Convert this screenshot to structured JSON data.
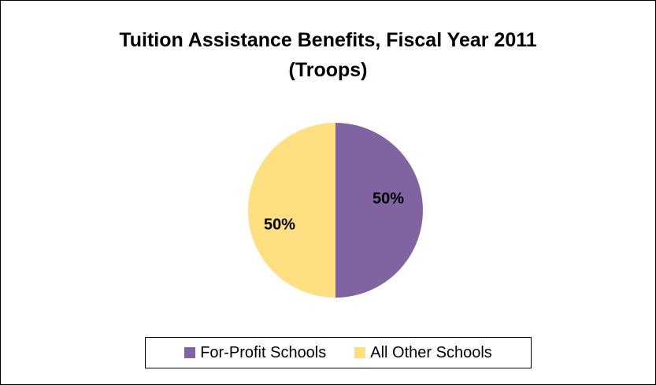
{
  "chart_data": {
    "type": "pie",
    "title_lines": [
      "Tuition Assistance Benefits, Fiscal Year 2011",
      "(Troops)"
    ],
    "categories": [
      "For-Profit Schools",
      "All Other Schools"
    ],
    "values": [
      50,
      50
    ],
    "data_labels": [
      "50%",
      "50%"
    ],
    "colors": [
      "#8064A2",
      "#FFDF80"
    ],
    "legend_position": "bottom"
  }
}
